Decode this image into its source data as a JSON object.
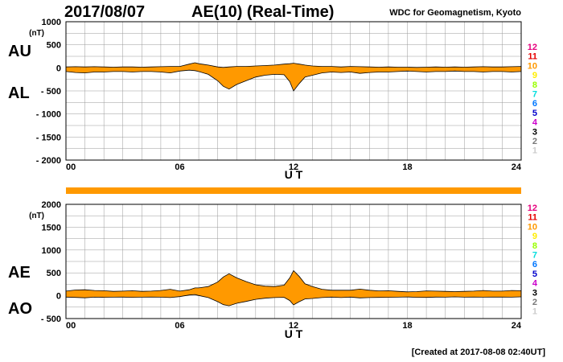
{
  "header": {
    "date": "2017/08/07",
    "title": "AE(10) (Real-Time)",
    "organization": "WDC for Geomagnetism, Kyoto"
  },
  "footer": {
    "created": "[Created at 2017-08-08 02:40UT]"
  },
  "station_legend": {
    "items": [
      {
        "label": "12",
        "color": "#e6007e"
      },
      {
        "label": "11",
        "color": "#e60000"
      },
      {
        "label": "10",
        "color": "#ff9900"
      },
      {
        "label": "9",
        "color": "#ffee00"
      },
      {
        "label": "8",
        "color": "#99ff00"
      },
      {
        "label": "7",
        "color": "#00dddd"
      },
      {
        "label": "6",
        "color": "#0077ff"
      },
      {
        "label": "5",
        "color": "#0000cc"
      },
      {
        "label": "4",
        "color": "#cc00cc"
      },
      {
        "label": "3",
        "color": "#000000"
      },
      {
        "label": "2",
        "color": "#777777"
      },
      {
        "label": "1",
        "color": "#cccccc"
      }
    ]
  },
  "colors": {
    "fill": "#ff9900",
    "line": "#000000",
    "grid": "#999999",
    "coverage_bar": "#ff9900"
  },
  "chart_data": [
    {
      "type": "area",
      "upper_label": "AU",
      "lower_label": "AL",
      "unit": "(nT)",
      "xlabel": "U T",
      "xlim": [
        0,
        24
      ],
      "ylim": [
        -2000,
        1000
      ],
      "xticks": [
        0,
        6,
        12,
        18,
        24
      ],
      "xtick_labels": [
        "00",
        "06",
        "12",
        "18",
        "24"
      ],
      "yticks": [
        1000,
        500,
        0,
        -500,
        -1000,
        -1500,
        -2000
      ],
      "ytick_labels": [
        "1000",
        "500",
        "0",
        "- 500",
        "- 1000",
        "- 1500",
        "- 2000"
      ],
      "grid": true,
      "x": [
        0,
        0.5,
        1,
        1.5,
        2,
        2.5,
        3,
        3.5,
        4,
        4.5,
        5,
        5.5,
        6,
        6.5,
        6.8,
        7,
        7.5,
        8,
        8.3,
        8.6,
        9,
        9.5,
        10,
        10.5,
        11,
        11.5,
        11.8,
        12,
        12.3,
        12.6,
        13,
        13.5,
        14,
        14.5,
        15,
        15.5,
        16,
        16.5,
        17,
        17.5,
        18,
        18.5,
        19,
        19.5,
        20,
        20.5,
        21,
        21.5,
        22,
        22.5,
        23,
        23.5,
        24
      ],
      "upper": [
        20,
        25,
        20,
        25,
        20,
        15,
        20,
        20,
        15,
        20,
        25,
        30,
        30,
        80,
        110,
        90,
        60,
        20,
        10,
        20,
        30,
        30,
        40,
        50,
        60,
        80,
        90,
        100,
        80,
        60,
        40,
        30,
        30,
        20,
        30,
        25,
        20,
        15,
        20,
        15,
        15,
        10,
        15,
        20,
        15,
        20,
        15,
        20,
        25,
        20,
        20,
        25,
        30
      ],
      "lower": [
        -80,
        -100,
        -110,
        -90,
        -90,
        -80,
        -80,
        -90,
        -80,
        -80,
        -90,
        -110,
        -70,
        -50,
        -60,
        -80,
        -140,
        -280,
        -400,
        -460,
        -360,
        -280,
        -200,
        -160,
        -140,
        -150,
        -300,
        -500,
        -340,
        -200,
        -160,
        -110,
        -90,
        -100,
        -90,
        -120,
        -100,
        -90,
        -90,
        -80,
        -70,
        -80,
        -90,
        -80,
        -80,
        -70,
        -80,
        -80,
        -90,
        -80,
        -80,
        -90,
        -80
      ]
    },
    {
      "type": "area",
      "upper_label": "AE",
      "lower_label": "AO",
      "unit": "(nT)",
      "xlabel": "U T",
      "xlim": [
        0,
        24
      ],
      "ylim": [
        -500,
        2000
      ],
      "xticks": [
        0,
        6,
        12,
        18,
        24
      ],
      "xtick_labels": [
        "00",
        "06",
        "12",
        "18",
        "24"
      ],
      "yticks": [
        2000,
        1500,
        1000,
        500,
        0,
        -500
      ],
      "ytick_labels": [
        "2000",
        "1500",
        "1000",
        "500",
        "0",
        "- 500"
      ],
      "grid": true,
      "x": [
        0,
        0.5,
        1,
        1.5,
        2,
        2.5,
        3,
        3.5,
        4,
        4.5,
        5,
        5.5,
        6,
        6.5,
        6.8,
        7,
        7.5,
        8,
        8.3,
        8.6,
        9,
        9.5,
        10,
        10.5,
        11,
        11.5,
        11.8,
        12,
        12.3,
        12.6,
        13,
        13.5,
        14,
        14.5,
        15,
        15.5,
        16,
        16.5,
        17,
        17.5,
        18,
        18.5,
        19,
        19.5,
        20,
        20.5,
        21,
        21.5,
        22,
        22.5,
        23,
        23.5,
        24
      ],
      "upper": [
        100,
        125,
        130,
        115,
        110,
        95,
        100,
        110,
        95,
        100,
        115,
        140,
        100,
        130,
        170,
        170,
        200,
        300,
        410,
        480,
        390,
        310,
        240,
        210,
        200,
        230,
        390,
        550,
        420,
        260,
        200,
        140,
        120,
        120,
        120,
        145,
        120,
        105,
        110,
        95,
        85,
        90,
        105,
        100,
        95,
        90,
        95,
        100,
        115,
        100,
        100,
        115,
        110
      ],
      "lower": [
        -30,
        -37,
        -45,
        -32,
        -35,
        -32,
        -30,
        -35,
        -32,
        -30,
        -32,
        -40,
        -20,
        15,
        25,
        5,
        -40,
        -130,
        -195,
        -220,
        -165,
        -125,
        -80,
        -55,
        -40,
        -35,
        -105,
        -200,
        -130,
        -70,
        -60,
        -40,
        -30,
        -40,
        -30,
        -47,
        -40,
        -37,
        -35,
        -32,
        -27,
        -35,
        -37,
        -30,
        -32,
        -25,
        -32,
        -30,
        -32,
        -30,
        -30,
        -32,
        -25
      ]
    }
  ]
}
